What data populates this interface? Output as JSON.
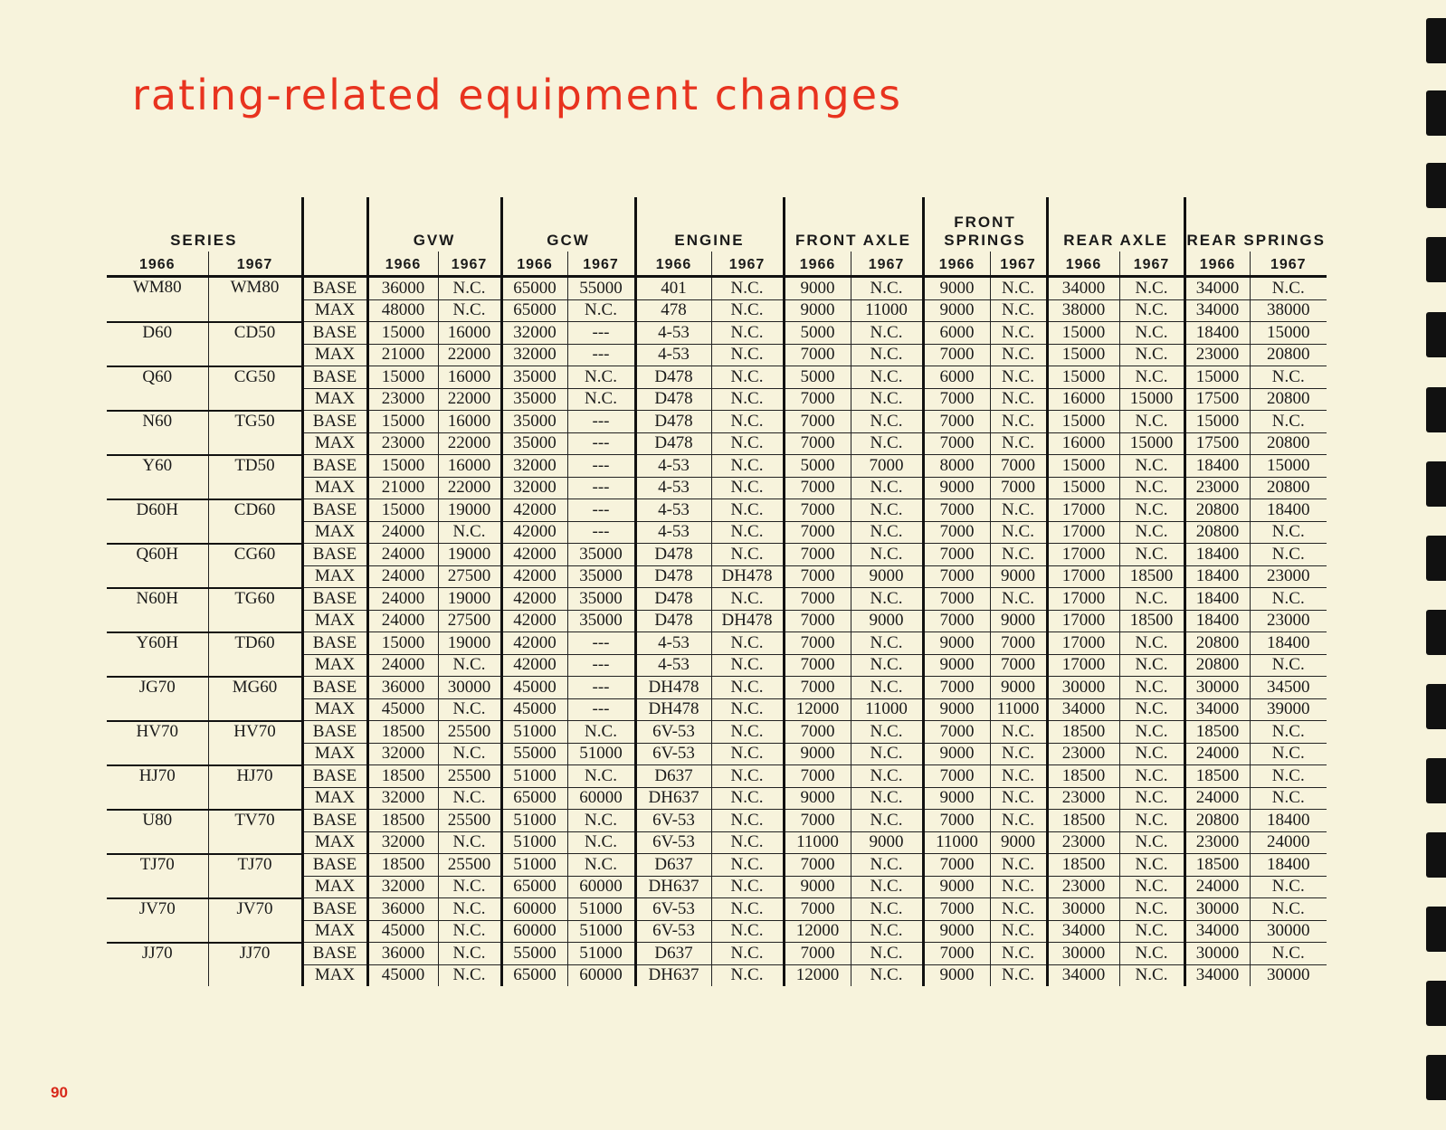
{
  "title": "rating-related equipment changes",
  "page_number": "90",
  "headers": {
    "series": "SERIES",
    "gvw": "GVW",
    "gcw": "GCW",
    "engine": "ENGINE",
    "front_axle": "FRONT AXLE",
    "front_springs": "FRONT SPRINGS",
    "rear_axle": "REAR AXLE",
    "rear_springs": "REAR SPRINGS",
    "year_a": "1966",
    "year_b": "1967"
  },
  "rows": [
    [
      "WM80",
      "WM80",
      "BASE",
      "36000",
      "N.C.",
      "65000",
      "55000",
      "401",
      "N.C.",
      "9000",
      "N.C.",
      "9000",
      "N.C.",
      "34000",
      "N.C.",
      "34000",
      "N.C."
    ],
    [
      "",
      "",
      "MAX",
      "48000",
      "N.C.",
      "65000",
      "N.C.",
      "478",
      "N.C.",
      "9000",
      "11000",
      "9000",
      "N.C.",
      "38000",
      "N.C.",
      "34000",
      "38000"
    ],
    [
      "D60",
      "CD50",
      "BASE",
      "15000",
      "16000",
      "32000",
      "---",
      "4-53",
      "N.C.",
      "5000",
      "N.C.",
      "6000",
      "N.C.",
      "15000",
      "N.C.",
      "18400",
      "15000"
    ],
    [
      "",
      "",
      "MAX",
      "21000",
      "22000",
      "32000",
      "---",
      "4-53",
      "N.C.",
      "7000",
      "N.C.",
      "7000",
      "N.C.",
      "15000",
      "N.C.",
      "23000",
      "20800"
    ],
    [
      "Q60",
      "CG50",
      "BASE",
      "15000",
      "16000",
      "35000",
      "N.C.",
      "D478",
      "N.C.",
      "5000",
      "N.C.",
      "6000",
      "N.C.",
      "15000",
      "N.C.",
      "15000",
      "N.C."
    ],
    [
      "",
      "",
      "MAX",
      "23000",
      "22000",
      "35000",
      "N.C.",
      "D478",
      "N.C.",
      "7000",
      "N.C.",
      "7000",
      "N.C.",
      "16000",
      "15000",
      "17500",
      "20800"
    ],
    [
      "N60",
      "TG50",
      "BASE",
      "15000",
      "16000",
      "35000",
      "---",
      "D478",
      "N.C.",
      "7000",
      "N.C.",
      "7000",
      "N.C.",
      "15000",
      "N.C.",
      "15000",
      "N.C."
    ],
    [
      "",
      "",
      "MAX",
      "23000",
      "22000",
      "35000",
      "---",
      "D478",
      "N.C.",
      "7000",
      "N.C.",
      "7000",
      "N.C.",
      "16000",
      "15000",
      "17500",
      "20800"
    ],
    [
      "Y60",
      "TD50",
      "BASE",
      "15000",
      "16000",
      "32000",
      "---",
      "4-53",
      "N.C.",
      "5000",
      "7000",
      "8000",
      "7000",
      "15000",
      "N.C.",
      "18400",
      "15000"
    ],
    [
      "",
      "",
      "MAX",
      "21000",
      "22000",
      "32000",
      "---",
      "4-53",
      "N.C.",
      "7000",
      "N.C.",
      "9000",
      "7000",
      "15000",
      "N.C.",
      "23000",
      "20800"
    ],
    [
      "D60H",
      "CD60",
      "BASE",
      "15000",
      "19000",
      "42000",
      "---",
      "4-53",
      "N.C.",
      "7000",
      "N.C.",
      "7000",
      "N.C.",
      "17000",
      "N.C.",
      "20800",
      "18400"
    ],
    [
      "",
      "",
      "MAX",
      "24000",
      "N.C.",
      "42000",
      "---",
      "4-53",
      "N.C.",
      "7000",
      "N.C.",
      "7000",
      "N.C.",
      "17000",
      "N.C.",
      "20800",
      "N.C."
    ],
    [
      "Q60H",
      "CG60",
      "BASE",
      "24000",
      "19000",
      "42000",
      "35000",
      "D478",
      "N.C.",
      "7000",
      "N.C.",
      "7000",
      "N.C.",
      "17000",
      "N.C.",
      "18400",
      "N.C."
    ],
    [
      "",
      "",
      "MAX",
      "24000",
      "27500",
      "42000",
      "35000",
      "D478",
      "DH478",
      "7000",
      "9000",
      "7000",
      "9000",
      "17000",
      "18500",
      "18400",
      "23000"
    ],
    [
      "N60H",
      "TG60",
      "BASE",
      "24000",
      "19000",
      "42000",
      "35000",
      "D478",
      "N.C.",
      "7000",
      "N.C.",
      "7000",
      "N.C.",
      "17000",
      "N.C.",
      "18400",
      "N.C."
    ],
    [
      "",
      "",
      "MAX",
      "24000",
      "27500",
      "42000",
      "35000",
      "D478",
      "DH478",
      "7000",
      "9000",
      "7000",
      "9000",
      "17000",
      "18500",
      "18400",
      "23000"
    ],
    [
      "Y60H",
      "TD60",
      "BASE",
      "15000",
      "19000",
      "42000",
      "---",
      "4-53",
      "N.C.",
      "7000",
      "N.C.",
      "9000",
      "7000",
      "17000",
      "N.C.",
      "20800",
      "18400"
    ],
    [
      "",
      "",
      "MAX",
      "24000",
      "N.C.",
      "42000",
      "---",
      "4-53",
      "N.C.",
      "7000",
      "N.C.",
      "9000",
      "7000",
      "17000",
      "N.C.",
      "20800",
      "N.C."
    ],
    [
      "JG70",
      "MG60",
      "BASE",
      "36000",
      "30000",
      "45000",
      "---",
      "DH478",
      "N.C.",
      "7000",
      "N.C.",
      "7000",
      "9000",
      "30000",
      "N.C.",
      "30000",
      "34500"
    ],
    [
      "",
      "",
      "MAX",
      "45000",
      "N.C.",
      "45000",
      "---",
      "DH478",
      "N.C.",
      "12000",
      "11000",
      "9000",
      "11000",
      "34000",
      "N.C.",
      "34000",
      "39000"
    ],
    [
      "HV70",
      "HV70",
      "BASE",
      "18500",
      "25500",
      "51000",
      "N.C.",
      "6V-53",
      "N.C.",
      "7000",
      "N.C.",
      "7000",
      "N.C.",
      "18500",
      "N.C.",
      "18500",
      "N.C."
    ],
    [
      "",
      "",
      "MAX",
      "32000",
      "N.C.",
      "55000",
      "51000",
      "6V-53",
      "N.C.",
      "9000",
      "N.C.",
      "9000",
      "N.C.",
      "23000",
      "N.C.",
      "24000",
      "N.C."
    ],
    [
      "HJ70",
      "HJ70",
      "BASE",
      "18500",
      "25500",
      "51000",
      "N.C.",
      "D637",
      "N.C.",
      "7000",
      "N.C.",
      "7000",
      "N.C.",
      "18500",
      "N.C.",
      "18500",
      "N.C."
    ],
    [
      "",
      "",
      "MAX",
      "32000",
      "N.C.",
      "65000",
      "60000",
      "DH637",
      "N.C.",
      "9000",
      "N.C.",
      "9000",
      "N.C.",
      "23000",
      "N.C.",
      "24000",
      "N.C."
    ],
    [
      "U80",
      "TV70",
      "BASE",
      "18500",
      "25500",
      "51000",
      "N.C.",
      "6V-53",
      "N.C.",
      "7000",
      "N.C.",
      "7000",
      "N.C.",
      "18500",
      "N.C.",
      "20800",
      "18400"
    ],
    [
      "",
      "",
      "MAX",
      "32000",
      "N.C.",
      "51000",
      "N.C.",
      "6V-53",
      "N.C.",
      "11000",
      "9000",
      "11000",
      "9000",
      "23000",
      "N.C.",
      "23000",
      "24000"
    ],
    [
      "TJ70",
      "TJ70",
      "BASE",
      "18500",
      "25500",
      "51000",
      "N.C.",
      "D637",
      "N.C.",
      "7000",
      "N.C.",
      "7000",
      "N.C.",
      "18500",
      "N.C.",
      "18500",
      "18400"
    ],
    [
      "",
      "",
      "MAX",
      "32000",
      "N.C.",
      "65000",
      "60000",
      "DH637",
      "N.C.",
      "9000",
      "N.C.",
      "9000",
      "N.C.",
      "23000",
      "N.C.",
      "24000",
      "N.C."
    ],
    [
      "JV70",
      "JV70",
      "BASE",
      "36000",
      "N.C.",
      "60000",
      "51000",
      "6V-53",
      "N.C.",
      "7000",
      "N.C.",
      "7000",
      "N.C.",
      "30000",
      "N.C.",
      "30000",
      "N.C."
    ],
    [
      "",
      "",
      "MAX",
      "45000",
      "N.C.",
      "60000",
      "51000",
      "6V-53",
      "N.C.",
      "12000",
      "N.C.",
      "9000",
      "N.C.",
      "34000",
      "N.C.",
      "34000",
      "30000"
    ],
    [
      "JJ70",
      "JJ70",
      "BASE",
      "36000",
      "N.C.",
      "55000",
      "51000",
      "D637",
      "N.C.",
      "7000",
      "N.C.",
      "7000",
      "N.C.",
      "30000",
      "N.C.",
      "30000",
      "N.C."
    ],
    [
      "",
      "",
      "MAX",
      "45000",
      "N.C.",
      "65000",
      "60000",
      "DH637",
      "N.C.",
      "12000",
      "N.C.",
      "9000",
      "N.C.",
      "34000",
      "N.C.",
      "34000",
      "30000"
    ]
  ]
}
